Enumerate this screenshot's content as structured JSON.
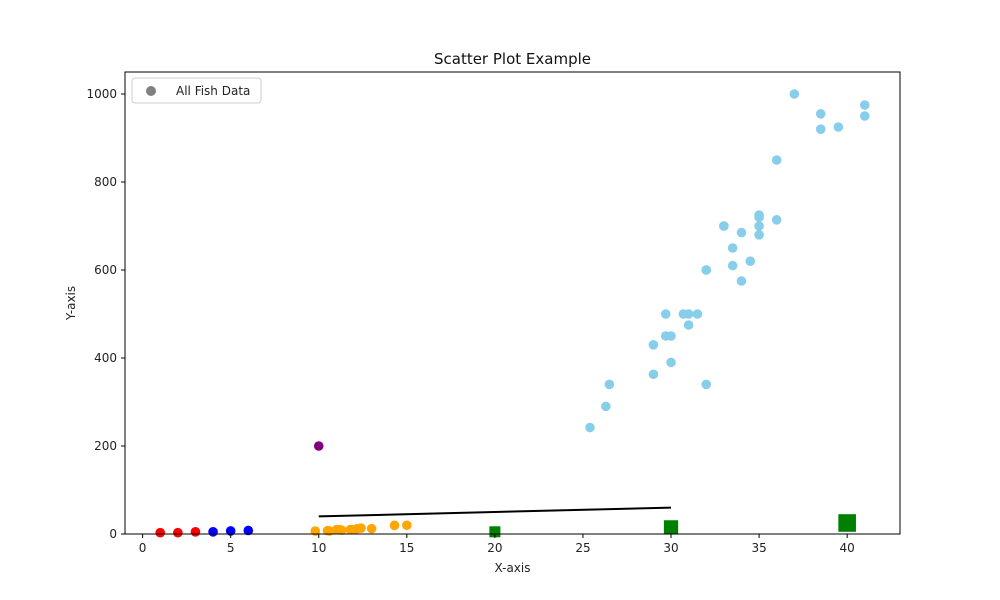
{
  "chart_data": {
    "type": "scatter",
    "title": "Scatter Plot Example",
    "xlabel": "X-axis",
    "ylabel": "Y-axis",
    "xlim": [
      -1,
      43
    ],
    "ylim": [
      0,
      1050
    ],
    "xticks": [
      0,
      5,
      10,
      15,
      20,
      25,
      30,
      35,
      40
    ],
    "yticks": [
      0,
      200,
      400,
      600,
      800,
      1000
    ],
    "grid": false,
    "legend": {
      "entries": [
        "All Fish Data"
      ],
      "placement": "top-left"
    },
    "series": [
      {
        "color": "#87CEEB",
        "marker": "circle",
        "points": [
          [
            25.4,
            242
          ],
          [
            26.3,
            290
          ],
          [
            26.5,
            340
          ],
          [
            29,
            363
          ],
          [
            29,
            430
          ],
          [
            29.7,
            450
          ],
          [
            29.7,
            500
          ],
          [
            30,
            390
          ],
          [
            30,
            450
          ],
          [
            30.7,
            500
          ],
          [
            31,
            475
          ],
          [
            31,
            500
          ],
          [
            31.5,
            500
          ],
          [
            32,
            340
          ],
          [
            32,
            600
          ],
          [
            32,
            600
          ],
          [
            33,
            700
          ],
          [
            33,
            700
          ],
          [
            33.5,
            610
          ],
          [
            33.5,
            650
          ],
          [
            34,
            575
          ],
          [
            34,
            685
          ],
          [
            34.5,
            620
          ],
          [
            35,
            680
          ],
          [
            35,
            700
          ],
          [
            35,
            725
          ],
          [
            35,
            720
          ],
          [
            36,
            714
          ],
          [
            36,
            850
          ],
          [
            37,
            1000
          ],
          [
            38.5,
            920
          ],
          [
            38.5,
            955
          ],
          [
            39.5,
            925
          ],
          [
            41,
            975
          ],
          [
            41,
            950
          ]
        ]
      },
      {
        "color": "#FF0000",
        "marker": "circle",
        "points": [
          [
            1,
            3
          ],
          [
            2,
            3
          ],
          [
            3,
            5
          ]
        ]
      },
      {
        "color": "#0000FF",
        "marker": "circle",
        "points": [
          [
            4,
            5
          ],
          [
            5,
            7
          ],
          [
            6,
            8
          ]
        ]
      },
      {
        "color": "#800080",
        "marker": "circle",
        "points": [
          [
            10,
            200
          ]
        ]
      },
      {
        "color": "#FFA500",
        "marker": "circle",
        "points": [
          [
            9.8,
            6.7
          ],
          [
            10.5,
            7.5
          ],
          [
            10.6,
            7
          ],
          [
            11,
            9.7
          ],
          [
            11.2,
            9.8
          ],
          [
            11.3,
            8.7
          ],
          [
            11.8,
            10
          ],
          [
            11.8,
            9.9
          ],
          [
            12,
            9.8
          ],
          [
            12.2,
            12.2
          ],
          [
            12.4,
            13.4
          ],
          [
            13,
            12.2
          ],
          [
            14.3,
            19.7
          ],
          [
            15,
            19.9
          ]
        ]
      },
      {
        "color": "#008000",
        "marker": "square",
        "points": [
          [
            20,
            5
          ],
          [
            30,
            15
          ],
          [
            40,
            25
          ]
        ],
        "sizes": [
          1,
          1.3,
          1.6
        ]
      }
    ],
    "line": {
      "color": "#000000",
      "points": [
        [
          10,
          40
        ],
        [
          30,
          60
        ]
      ]
    }
  }
}
